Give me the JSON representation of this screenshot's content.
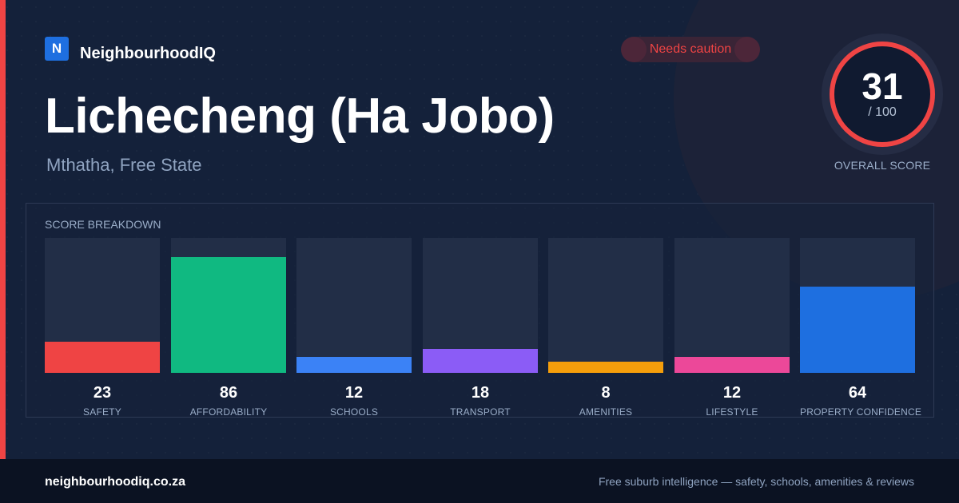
{
  "brand": {
    "logo_letter": "N",
    "name": "NeighbourhoodIQ",
    "color": "#1e6fe0"
  },
  "status_badge": {
    "label": "Needs caution",
    "color": "#ef4444"
  },
  "location": {
    "title": "Lichecheng (Ha Jobo)",
    "subtitle": "Mthatha, Free State"
  },
  "overall": {
    "score": "31",
    "max": "/ 100",
    "label": "OVERALL SCORE",
    "ring_color": "#ef4444"
  },
  "breakdown": {
    "heading": "SCORE BREAKDOWN",
    "max": 100,
    "items": [
      {
        "label": "SAFETY",
        "value": 23,
        "color": "#ef4444"
      },
      {
        "label": "AFFORDABILITY",
        "value": 86,
        "color": "#10b981"
      },
      {
        "label": "SCHOOLS",
        "value": 12,
        "color": "#3b82f6"
      },
      {
        "label": "TRANSPORT",
        "value": 18,
        "color": "#8b5cf6"
      },
      {
        "label": "AMENITIES",
        "value": 8,
        "color": "#f59e0b"
      },
      {
        "label": "LIFESTYLE",
        "value": 12,
        "color": "#ec4899"
      },
      {
        "label": "PROPERTY CONFIDENCE",
        "value": 64,
        "color": "#1e6fe0"
      }
    ]
  },
  "footer": {
    "url": "neighbourhoodiq.co.za",
    "tagline": "Free suburb intelligence — safety, schools, amenities & reviews"
  }
}
